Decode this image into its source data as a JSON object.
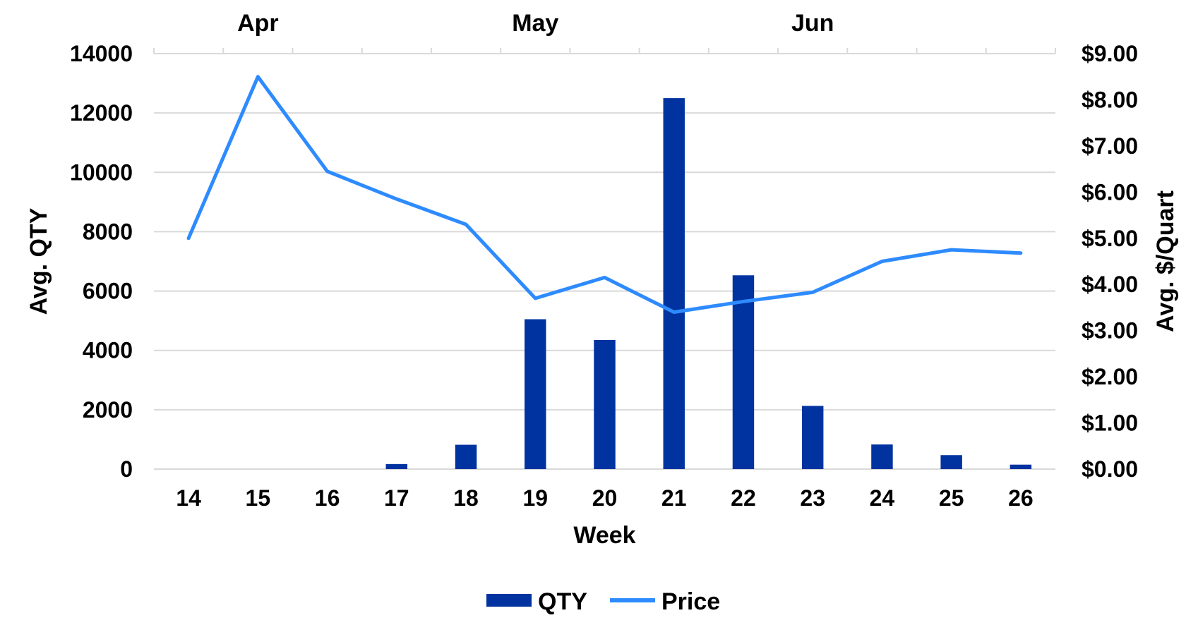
{
  "chart_data": {
    "type": "bar",
    "x": [
      "14",
      "15",
      "16",
      "17",
      "18",
      "19",
      "20",
      "21",
      "22",
      "23",
      "24",
      "25",
      "26"
    ],
    "xlabel": "Week",
    "ylabel_left": "Avg. QTY",
    "ylabel_right": "Avg. $/Quart",
    "ylim_left": [
      0,
      14000
    ],
    "yticks_left": [
      0,
      2000,
      4000,
      6000,
      8000,
      10000,
      12000,
      14000
    ],
    "ylim_right": [
      0,
      9
    ],
    "yticks_right": [
      "$0.00",
      "$1.00",
      "$2.00",
      "$3.00",
      "$4.00",
      "$5.00",
      "$6.00",
      "$7.00",
      "$8.00",
      "$9.00"
    ],
    "months": [
      {
        "label": "Apr",
        "week": "15"
      },
      {
        "label": "May",
        "week": "19"
      },
      {
        "label": "Jun",
        "week": "23"
      }
    ],
    "grid": true,
    "legend_position": "bottom",
    "series": [
      {
        "name": "QTY",
        "type": "bar",
        "axis": "left",
        "color": "#0033a0",
        "values": [
          0,
          0,
          0,
          170,
          820,
          5050,
          4350,
          12500,
          6530,
          2130,
          830,
          470,
          150
        ]
      },
      {
        "name": "Price",
        "type": "line",
        "axis": "right",
        "color": "#2e8bff",
        "values": [
          5.0,
          8.5,
          6.45,
          5.85,
          5.3,
          3.7,
          4.15,
          3.4,
          3.63,
          3.83,
          4.5,
          4.75,
          4.68
        ]
      }
    ]
  }
}
